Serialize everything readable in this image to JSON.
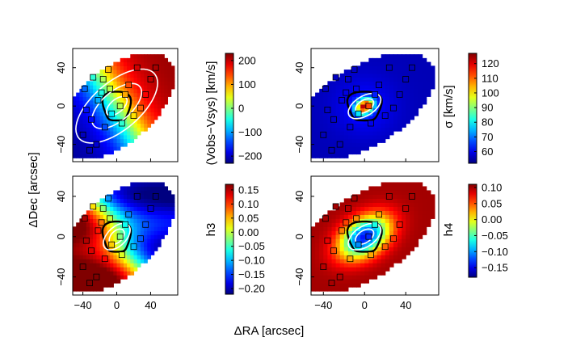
{
  "chart_data": {
    "type": "map-grid",
    "xlabel": "ΔRA [arcsec]",
    "ylabel": "ΔDec [arcsec]",
    "xlim": [
      -52,
      72
    ],
    "ylim": [
      -58,
      60
    ],
    "xticks": [
      -40,
      0,
      40
    ],
    "yticks": [
      40,
      0,
      -40
    ],
    "panels": [
      {
        "name": "velocity",
        "colorbar_label": "(Vobs−Vsys) [km/s]",
        "colorbar_ticks": [
          "200",
          "100",
          "0",
          "−100",
          "−200"
        ],
        "colorbar_values": [
          200,
          100,
          0,
          -100,
          -200
        ],
        "range": [
          -230,
          230
        ],
        "contours": "white isovelocity ellipses"
      },
      {
        "name": "dispersion",
        "colorbar_label": "σ [km/s]",
        "colorbar_ticks": [
          "120",
          "110",
          "100",
          "90",
          "80",
          "70",
          "60"
        ],
        "colorbar_values": [
          120,
          110,
          100,
          90,
          80,
          70,
          60
        ],
        "range": [
          52,
          127
        ]
      },
      {
        "name": "h3",
        "colorbar_label": "h3",
        "colorbar_ticks": [
          "0.15",
          "0.10",
          "0.05",
          "0.00",
          "−0.05",
          "−0.10",
          "−0.15",
          "−0.20"
        ],
        "colorbar_values": [
          0.15,
          0.1,
          0.05,
          0.0,
          -0.05,
          -0.1,
          -0.15,
          -0.2
        ],
        "range": [
          -0.22,
          0.17
        ]
      },
      {
        "name": "h4",
        "colorbar_label": "h4",
        "colorbar_ticks": [
          "0.10",
          "0.05",
          "0.00",
          "−0.05",
          "−0.10",
          "−0.15"
        ],
        "colorbar_values": [
          0.1,
          0.05,
          0.0,
          -0.05,
          -0.1,
          -0.15
        ],
        "range": [
          -0.18,
          0.11
        ]
      }
    ],
    "markers": [
      [
        -32,
        -46
      ],
      [
        -24,
        -40
      ],
      [
        -38,
        18
      ],
      [
        -16,
        28
      ],
      [
        -10,
        38
      ],
      [
        24,
        40
      ],
      [
        -22,
        6
      ],
      [
        -30,
        -14
      ],
      [
        -6,
        -8
      ],
      [
        14,
        22
      ],
      [
        40,
        28
      ],
      [
        6,
        -18
      ],
      [
        -40,
        -30
      ],
      [
        28,
        -2
      ],
      [
        10,
        12
      ],
      [
        -14,
        -22
      ],
      [
        4,
        0
      ],
      [
        -18,
        14
      ],
      [
        34,
        12
      ],
      [
        -28,
        30
      ],
      [
        20,
        -10
      ],
      [
        -8,
        18
      ],
      [
        -36,
        -4
      ],
      [
        46,
        40
      ]
    ]
  }
}
